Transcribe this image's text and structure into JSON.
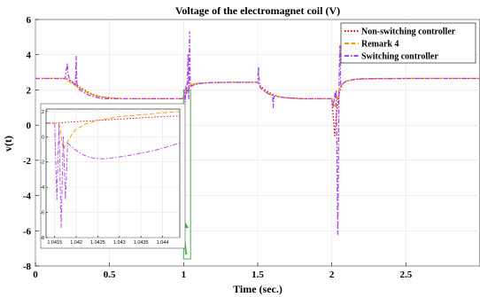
{
  "chart_data": [
    {
      "type": "line",
      "title": "Voltage of the electromagnet coil (V)",
      "xlabel": "Time (sec.)",
      "ylabel": "v(t)",
      "xlim": [
        0,
        3
      ],
      "ylim": [
        -8,
        6
      ],
      "x_ticks": [
        0,
        0.5,
        1,
        1.5,
        2,
        2.5
      ],
      "x_tick_labels": [
        "0",
        "0.5",
        "1",
        "1.5",
        "2",
        "2.5"
      ],
      "y_ticks": [
        -8,
        -6,
        -4,
        -2,
        0,
        2,
        4,
        6
      ],
      "y_tick_labels": [
        "-8",
        "-6",
        "-4",
        "-2",
        "0",
        "2",
        "4",
        "6"
      ],
      "grid": true,
      "legend_position": "top-right",
      "series": [
        {
          "name": "Non-switching controller",
          "color": "#e00000",
          "style": "dotted",
          "x": [
            0,
            0.2,
            0.22,
            0.25,
            0.28,
            0.3,
            0.33,
            0.36,
            0.4,
            0.45,
            0.5,
            0.6,
            0.7,
            0.8,
            0.9,
            0.98,
            1.0,
            1.01,
            1.02,
            1.03,
            1.04,
            1.045,
            1.05,
            1.06,
            1.08,
            1.1,
            1.15,
            1.2,
            1.3,
            1.4,
            1.5,
            1.52,
            1.55,
            1.58,
            1.6,
            1.63,
            1.65,
            1.7,
            1.8,
            1.9,
            2.0,
            2.02,
            2.03,
            2.04,
            2.05,
            2.06,
            2.07,
            2.08,
            2.1,
            2.15,
            2.2,
            2.3,
            2.5,
            2.7,
            3.0
          ],
          "y": [
            2.65,
            2.65,
            2.6,
            2.45,
            2.3,
            2.15,
            2.0,
            1.85,
            1.7,
            1.6,
            1.55,
            1.5,
            1.5,
            1.5,
            1.5,
            1.5,
            1.55,
            1.6,
            1.8,
            2.0,
            2.15,
            2.2,
            2.25,
            2.3,
            2.35,
            2.38,
            2.4,
            2.42,
            2.43,
            2.43,
            2.43,
            2.2,
            2.0,
            1.85,
            1.75,
            1.65,
            1.6,
            1.55,
            1.5,
            1.5,
            1.5,
            -0.6,
            0.5,
            1.2,
            1.8,
            2.1,
            2.3,
            2.4,
            2.5,
            2.6,
            2.63,
            2.65,
            2.65,
            2.65,
            2.65
          ]
        },
        {
          "name": "Remark 4",
          "color": "#f0a000",
          "style": "dashed",
          "x": [
            0,
            0.2,
            0.22,
            0.25,
            0.3,
            0.33,
            0.36,
            0.4,
            0.45,
            0.5,
            0.6,
            0.8,
            0.98,
            1.0,
            1.01,
            1.02,
            1.03,
            1.04,
            1.05,
            1.07,
            1.1,
            1.15,
            1.2,
            1.3,
            1.5,
            1.52,
            1.55,
            1.58,
            1.6,
            1.65,
            1.7,
            1.8,
            2.0,
            2.02,
            2.04,
            2.05,
            2.06,
            2.08,
            2.1,
            2.15,
            2.2,
            2.5,
            3.0
          ],
          "y": [
            2.65,
            2.65,
            2.5,
            2.35,
            2.1,
            1.95,
            1.8,
            1.68,
            1.6,
            1.55,
            1.5,
            1.5,
            1.5,
            1.6,
            1.7,
            2.0,
            2.2,
            2.25,
            2.3,
            2.35,
            2.38,
            2.4,
            2.42,
            2.43,
            2.43,
            2.1,
            1.9,
            1.75,
            1.7,
            1.6,
            1.55,
            1.5,
            1.5,
            1.0,
            1.6,
            2.0,
            2.2,
            2.4,
            2.5,
            2.58,
            2.62,
            2.65,
            2.65
          ]
        },
        {
          "name": "Switching controller",
          "color": "#b040e8",
          "style": "dash-dot",
          "x": [
            0,
            0.2,
            0.215,
            0.22,
            0.23,
            0.25,
            0.27,
            0.275,
            0.28,
            0.3,
            0.33,
            0.36,
            0.4,
            0.43,
            0.45,
            0.5,
            0.6,
            0.8,
            0.98,
            0.99,
            1.0,
            1.005,
            1.01,
            1.015,
            1.02,
            1.025,
            1.03,
            1.035,
            1.04,
            1.045,
            1.05,
            1.06,
            1.08,
            1.1,
            1.15,
            1.2,
            1.3,
            1.5,
            1.505,
            1.51,
            1.52,
            1.55,
            1.58,
            1.6,
            1.605,
            1.61,
            1.65,
            1.7,
            1.8,
            2.0,
            2.01,
            2.02,
            2.025,
            2.03,
            2.04,
            2.05,
            2.055,
            2.06,
            2.07,
            2.08,
            2.1,
            2.15,
            2.2,
            2.5,
            3.0
          ],
          "y": [
            2.65,
            2.65,
            3.5,
            2.9,
            2.6,
            2.4,
            2.3,
            3.9,
            2.2,
            2.0,
            1.85,
            1.7,
            1.6,
            1.55,
            1.5,
            1.5,
            1.5,
            1.5,
            1.5,
            1.5,
            1.6,
            2.0,
            1.3,
            2.2,
            1.8,
            2.5,
            4.0,
            1.5,
            5.3,
            2.3,
            2.2,
            2.25,
            2.3,
            2.35,
            2.4,
            2.42,
            2.43,
            2.43,
            3.3,
            2.5,
            2.1,
            1.9,
            1.75,
            1.7,
            1.0,
            1.65,
            1.6,
            1.55,
            1.5,
            1.5,
            1.0,
            1.8,
            1.5,
            2.0,
            -6.2,
            3.0,
            4.5,
            2.2,
            2.3,
            2.4,
            2.5,
            2.6,
            2.63,
            2.65,
            2.65
          ]
        }
      ],
      "annotations": {
        "zoom_box_xlim": [
          1.0,
          1.047
        ],
        "zoom_box_ylim": [
          -7.6,
          2.0
        ],
        "arrow_color": "#4caf50"
      }
    },
    {
      "type": "line",
      "title": "",
      "xlim": [
        1.0413,
        1.0444
      ],
      "ylim": [
        -8,
        2.2
      ],
      "x_ticks": [
        1.0415,
        1.042,
        1.0425,
        1.043,
        1.0435,
        1.044
      ],
      "x_tick_labels": [
        "1.0415",
        "1.042",
        "1.0425",
        "1.043",
        "1.0435",
        "1.044"
      ],
      "y_ticks": [
        -8,
        -6,
        -4,
        -2,
        0,
        2
      ],
      "y_tick_labels": [
        "-8",
        "-6",
        "-4",
        "-2",
        "0",
        "2"
      ],
      "grid": true,
      "series": [
        {
          "name": "Non-switching controller",
          "color": "#e00000",
          "style": "dotted",
          "x": [
            1.0413,
            1.0416,
            1.042,
            1.043,
            1.044,
            1.0444
          ],
          "y": [
            1.05,
            1.1,
            1.2,
            1.4,
            1.6,
            1.65
          ]
        },
        {
          "name": "Remark 4",
          "color": "#f0a000",
          "style": "dashed",
          "x": [
            1.0413,
            1.0416,
            1.0417,
            1.0418,
            1.0419,
            1.042,
            1.0422,
            1.0425,
            1.043,
            1.044,
            1.0444
          ],
          "y": [
            1.1,
            1.1,
            -1.0,
            -0.4,
            0.2,
            0.6,
            1.0,
            1.3,
            1.6,
            1.9,
            2.0
          ]
        },
        {
          "name": "Switching controller",
          "color": "#b040e8",
          "style": "dash-dot",
          "x": [
            1.0413,
            1.0415,
            1.04155,
            1.0416,
            1.04165,
            1.0417,
            1.04175,
            1.0418,
            1.0419,
            1.042,
            1.0422,
            1.0424,
            1.0426,
            1.0428,
            1.043,
            1.0432,
            1.0435,
            1.0438,
            1.0441,
            1.0444
          ],
          "y": [
            1.1,
            1.1,
            -5.0,
            1.0,
            -7.2,
            0.0,
            -5.0,
            -0.5,
            -0.8,
            -1.1,
            -1.5,
            -1.7,
            -1.75,
            -1.7,
            -1.6,
            -1.5,
            -1.3,
            -1.1,
            -0.8,
            -0.5
          ]
        }
      ]
    }
  ]
}
